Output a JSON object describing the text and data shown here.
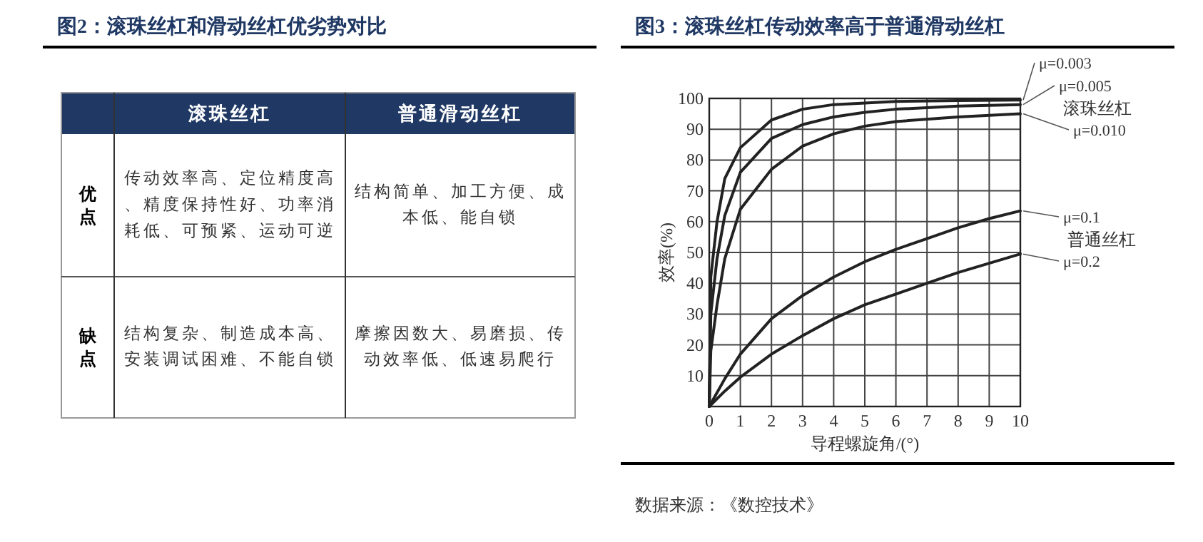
{
  "chart_data": [
    {
      "type": "other",
      "title": "图2：滚珠丝杠和滑动丝杠优劣势对比",
      "annotations": [
        "滚珠丝杠",
        "普通滑动丝杠",
        "优点",
        "传动效率高、定位精度高、精度保持性好、功率消耗低、可预紧、运动可逆",
        "结构简单、加工方便、成本低、能自锁",
        "缺点",
        "结构复杂、制造成本高、安装调试困难、不能自锁",
        "摩擦因数大、易磨损、传动效率低、低速易爬行"
      ]
    },
    {
      "type": "line",
      "title": "图3：滚珠丝杠传动效率高于普通滑动丝杠",
      "xlabel": "导程螺旋角/(°)",
      "ylabel": "效率(%)",
      "xlim": [
        0,
        10
      ],
      "ylim": [
        0,
        100
      ],
      "xticks": [
        0,
        1,
        2,
        3,
        4,
        5,
        6,
        7,
        8,
        9,
        10
      ],
      "yticks": [
        {
          "value": 0,
          "label": null
        },
        10,
        20,
        30,
        40,
        50,
        60,
        70,
        80,
        90,
        100
      ],
      "grid": true,
      "line_style": "solid",
      "series": [
        {
          "name": "μ=0.003",
          "color": "#222222",
          "x": [
            0,
            0.05,
            0.25,
            0.5,
            1,
            2,
            3,
            4,
            5,
            6,
            8,
            10
          ],
          "values": [
            0,
            42,
            60,
            74,
            84,
            93,
            96.5,
            98,
            98.5,
            99,
            99.3,
            99.5
          ]
        },
        {
          "name": "μ=0.005",
          "color": "#222222",
          "x": [
            0,
            0.05,
            0.25,
            0.5,
            1,
            2,
            3,
            4,
            5,
            6,
            8,
            10
          ],
          "values": [
            0,
            30,
            48,
            62,
            76,
            87,
            91.5,
            94,
            95.5,
            96.5,
            97.5,
            98
          ]
        },
        {
          "name": "μ=0.010",
          "color": "#222222",
          "x": [
            0,
            0.05,
            0.25,
            0.5,
            1,
            2,
            3,
            4,
            5,
            6,
            8,
            10
          ],
          "values": [
            0,
            18,
            33,
            48,
            64,
            77,
            84.5,
            88.5,
            91,
            92.5,
            94,
            95
          ]
        },
        {
          "name": "μ=0.1",
          "color": "#222222",
          "x": [
            0,
            0.5,
            1,
            2,
            3,
            4,
            5,
            6,
            7,
            8,
            9,
            10
          ],
          "values": [
            0,
            9,
            17,
            28.5,
            36,
            42,
            47,
            51,
            54.5,
            58,
            61,
            63.5
          ]
        },
        {
          "name": "μ=0.2",
          "color": "#222222",
          "x": [
            0,
            0.5,
            1,
            2,
            3,
            4,
            5,
            6,
            7,
            8,
            9,
            10
          ],
          "values": [
            0,
            5,
            9.5,
            17,
            23,
            28.5,
            33,
            36.5,
            40,
            43.5,
            46.5,
            49.5
          ]
        }
      ],
      "annotations": [
        "滚珠丝杠",
        "普通丝杠",
        "数据来源：《数控技术》"
      ]
    }
  ]
}
